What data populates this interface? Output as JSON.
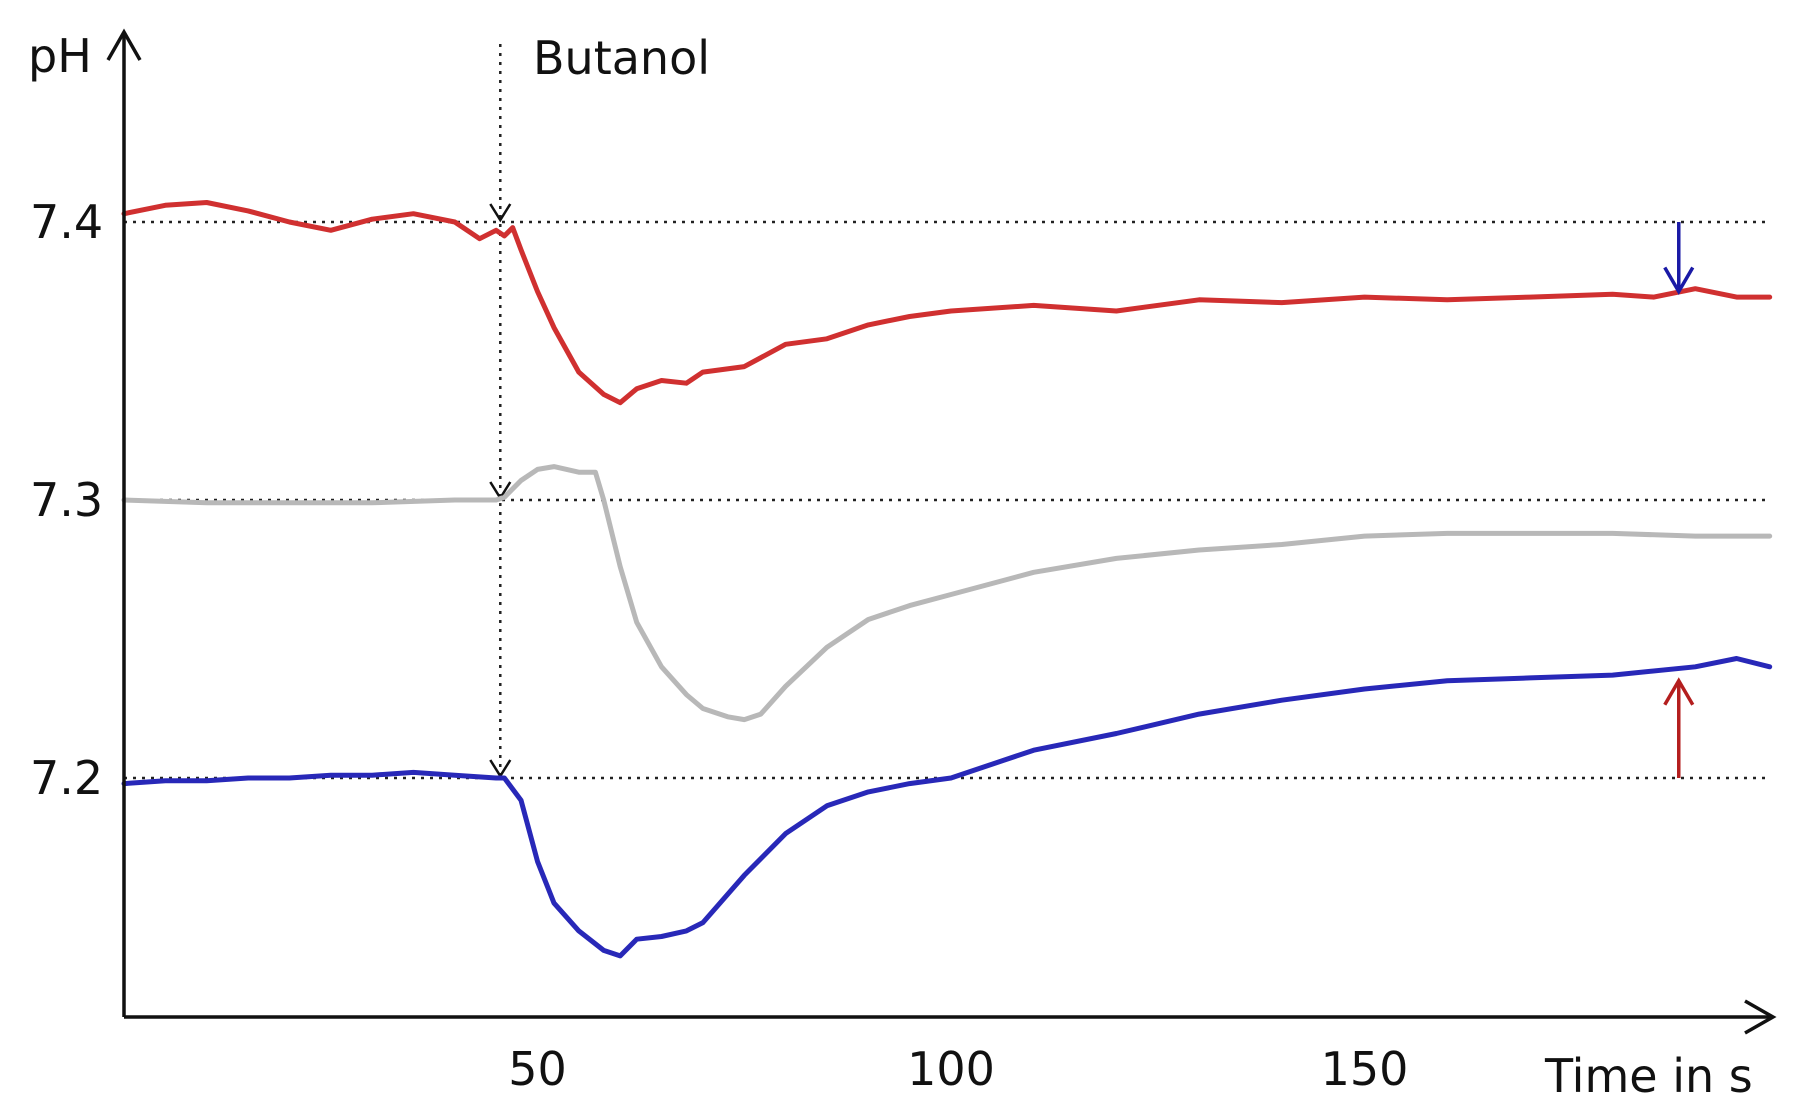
{
  "chart_data": {
    "type": "line",
    "title": "",
    "xlabel": "Time in s",
    "ylabel": "pH",
    "xlim": [
      0,
      200
    ],
    "ylim": [
      7.12,
      7.45
    ],
    "x_ticks": [
      50,
      100,
      150
    ],
    "x_tick_labels": [
      "50",
      "100",
      "150"
    ],
    "y_ticks": [
      7.2,
      7.3,
      7.4
    ],
    "y_tick_labels": [
      "7.2",
      "7.3",
      "7.4"
    ],
    "reference_lines_y": [
      7.4,
      7.3,
      7.2
    ],
    "grid": false,
    "legend": "none",
    "annotations": [
      {
        "text": "Butanol",
        "x": 45.5
      }
    ],
    "markers": [
      {
        "type": "arrow-down",
        "x": 188,
        "y_from": 7.4,
        "y_to": 7.375,
        "color": "#1a1aa6"
      },
      {
        "type": "arrow-up",
        "x": 188,
        "y_from": 7.2,
        "y_to": 7.235,
        "color": "#b41e1e"
      }
    ],
    "series": [
      {
        "color": "#d03030",
        "x": [
          0,
          5,
          10,
          15,
          20,
          25,
          30,
          35,
          40,
          43,
          45,
          46,
          47,
          48,
          50,
          52,
          55,
          58,
          60,
          62,
          65,
          68,
          70,
          75,
          80,
          85,
          90,
          95,
          100,
          110,
          120,
          130,
          140,
          150,
          160,
          170,
          180,
          185,
          190,
          195,
          199
        ],
        "y": [
          7.403,
          7.406,
          7.407,
          7.404,
          7.4,
          7.397,
          7.401,
          7.403,
          7.4,
          7.394,
          7.397,
          7.395,
          7.398,
          7.39,
          7.375,
          7.362,
          7.346,
          7.338,
          7.335,
          7.34,
          7.343,
          7.342,
          7.346,
          7.348,
          7.356,
          7.358,
          7.363,
          7.366,
          7.368,
          7.37,
          7.368,
          7.372,
          7.371,
          7.373,
          7.372,
          7.373,
          7.374,
          7.373,
          7.376,
          7.373,
          7.373
        ]
      },
      {
        "color": "#b8b8b8",
        "x": [
          0,
          10,
          20,
          30,
          40,
          45,
          46,
          48,
          50,
          52,
          55,
          57,
          58,
          60,
          62,
          65,
          68,
          70,
          73,
          75,
          77,
          80,
          85,
          90,
          95,
          100,
          110,
          120,
          130,
          140,
          150,
          160,
          170,
          180,
          190,
          199
        ],
        "y": [
          7.3,
          7.299,
          7.299,
          7.299,
          7.3,
          7.3,
          7.301,
          7.307,
          7.311,
          7.312,
          7.31,
          7.31,
          7.3,
          7.276,
          7.256,
          7.24,
          7.23,
          7.225,
          7.222,
          7.221,
          7.223,
          7.233,
          7.247,
          7.257,
          7.262,
          7.266,
          7.274,
          7.279,
          7.282,
          7.284,
          7.287,
          7.288,
          7.288,
          7.288,
          7.287,
          7.287
        ]
      },
      {
        "color": "#2828b8",
        "x": [
          0,
          5,
          10,
          15,
          20,
          25,
          30,
          35,
          40,
          45,
          46,
          48,
          50,
          52,
          55,
          58,
          60,
          62,
          65,
          68,
          70,
          75,
          80,
          85,
          90,
          95,
          100,
          105,
          110,
          120,
          130,
          140,
          150,
          160,
          170,
          180,
          190,
          195,
          199
        ],
        "y": [
          7.198,
          7.199,
          7.199,
          7.2,
          7.2,
          7.201,
          7.201,
          7.202,
          7.201,
          7.2,
          7.2,
          7.192,
          7.17,
          7.155,
          7.145,
          7.138,
          7.136,
          7.142,
          7.143,
          7.145,
          7.148,
          7.165,
          7.18,
          7.19,
          7.195,
          7.198,
          7.2,
          7.205,
          7.21,
          7.216,
          7.223,
          7.228,
          7.232,
          7.235,
          7.236,
          7.237,
          7.24,
          7.243,
          7.24
        ]
      }
    ]
  }
}
